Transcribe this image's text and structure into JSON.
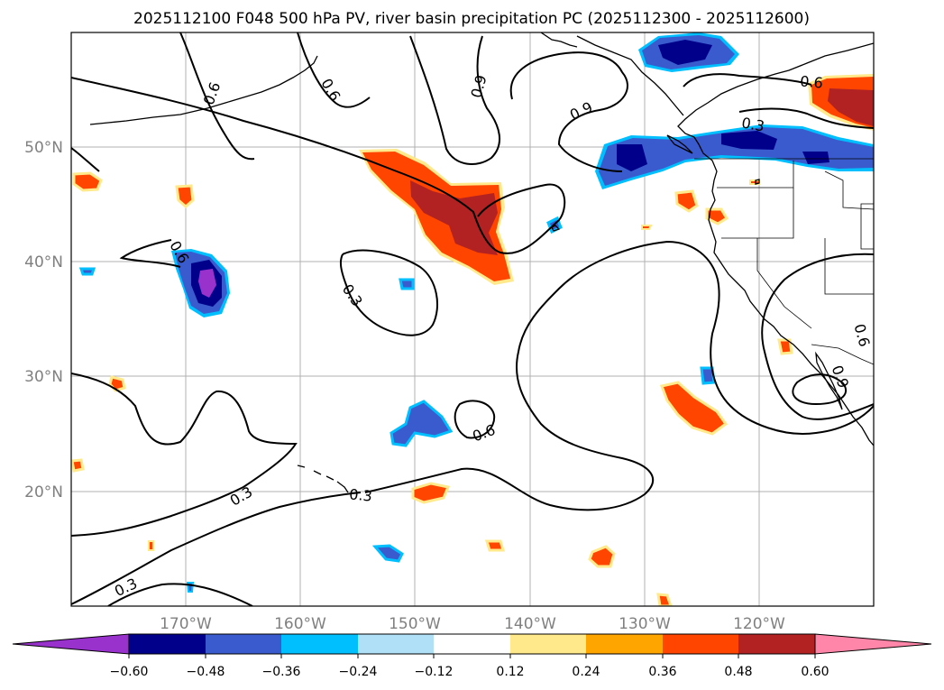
{
  "title": "2025112100 F048 500 hPa PV, river basin precipitation PC (2025112300 - 2025112600)",
  "lon_labels": [
    "170°W",
    "160°W",
    "150°W",
    "140°W",
    "130°W",
    "120°W"
  ],
  "lat_labels": [
    "50°N",
    "40°N",
    "30°N",
    "20°N"
  ],
  "contour_labels": [
    {
      "text": "0.6",
      "rot": -70
    },
    {
      "text": "0.6",
      "rot": 60
    },
    {
      "text": "0.9",
      "rot": -75
    },
    {
      "text": "0.9",
      "rot": -25
    },
    {
      "text": "0.6",
      "rot": 5
    },
    {
      "text": "0.3",
      "rot": 10
    },
    {
      "text": "0.6",
      "rot": 60
    },
    {
      "text": "0.3",
      "rot": 55
    },
    {
      "text": "0.6",
      "rot": -20
    },
    {
      "text": "0.6",
      "rot": 75
    },
    {
      "text": "0.9",
      "rot": 70
    },
    {
      "text": "0.3",
      "rot": -30
    },
    {
      "text": "0.3",
      "rot": 5
    },
    {
      "text": "0.3",
      "rot": -25
    }
  ],
  "colorbar": {
    "ticks": [
      "−0.60",
      "−0.48",
      "−0.36",
      "−0.24",
      "−0.12",
      "0.12",
      "0.24",
      "0.36",
      "0.48",
      "0.60"
    ],
    "colors": {
      "under": "#9932cc",
      "bins": [
        "#00008b",
        "#3a5bcd",
        "#00bfff",
        "#b0e0f8",
        "#ffffff",
        "#ffe98a",
        "#ffa500",
        "#ff4500",
        "#b22222"
      ],
      "over": "#ff86a8"
    }
  }
}
